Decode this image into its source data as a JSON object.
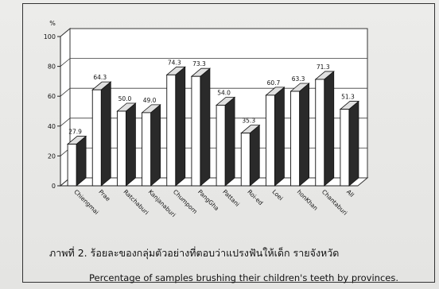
{
  "chart_data": {
    "type": "bar",
    "title": "",
    "ylabel": "%",
    "xlabel": "",
    "ylim": [
      0,
      100
    ],
    "yticks": [
      0,
      20,
      40,
      60,
      80,
      100
    ],
    "grid": true,
    "categories": [
      "Chiengmai",
      "Prae",
      "Ratchaburi",
      "Kanjanaburi",
      "Chumporn",
      "PangGha",
      "Pattani",
      "Roi-ed",
      "Loei",
      "honKhan",
      "Chantaburi",
      "All"
    ],
    "values": [
      27.9,
      64.3,
      50.0,
      49.0,
      74.3,
      73.3,
      54.0,
      35.3,
      60.7,
      63.3,
      71.3,
      51.3
    ],
    "value_labels": [
      "27.9",
      "64.3",
      "50.0",
      "49.0",
      "74.3",
      "73.3",
      "54.0",
      "35.3",
      "60.7",
      "63.3",
      "71.3",
      "51.3"
    ]
  },
  "captions": {
    "thai": "ภาพที่ 2.  ร้อยละของกลุ่มตัวอย่างที่ตอบว่าแปรงฟันให้เด็ก รายจังหวัด",
    "english": "Percentage of samples brushing their children's teeth by provinces."
  },
  "colors": {
    "bar_front": "#ffffff",
    "bar_side": "#2a2a2a",
    "bar_top": "#e0e0e0",
    "wall": "#ffffff",
    "grid": "#3a3a3a"
  }
}
